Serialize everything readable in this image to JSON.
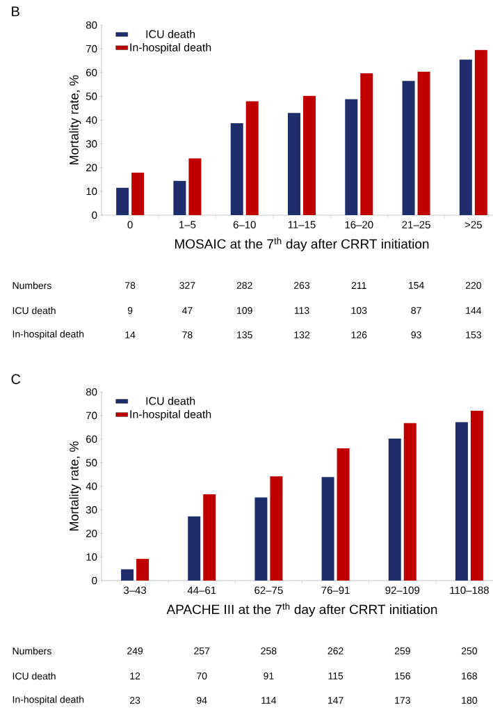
{
  "chart_data": [
    {
      "type": "bar",
      "title": "B",
      "xlabel": "MOSAIC at the 7$^{th}$ day after CRRT initiation",
      "ylabel": "Mortality rate, %",
      "categories": [
        "0",
        "1–5",
        "6–10",
        "11–15",
        "16–20",
        "21–25",
        ">25"
      ],
      "series": [
        {
          "name": "ICU death",
          "color": "#1f2d6b",
          "values": [
            11.5,
            14.4,
            38.7,
            43.0,
            48.8,
            56.5,
            65.5
          ]
        },
        {
          "name": "In-hospital death",
          "color": "#c00000",
          "values": [
            17.9,
            23.9,
            47.9,
            50.2,
            59.7,
            60.4,
            69.5
          ]
        }
      ],
      "ylim": [
        0,
        80
      ],
      "yticks": [
        0,
        10,
        20,
        30,
        40,
        50,
        60,
        70,
        80
      ],
      "grid": false,
      "legend": "top left",
      "annotations": [
        "Numbers",
        "78",
        "327",
        "282",
        "263",
        "211",
        "154",
        "220",
        "ICU death",
        "9",
        "47",
        "109",
        "113",
        "103",
        "87",
        "144",
        "In-hospital death",
        "14",
        "78",
        "135",
        "132",
        "126",
        "93",
        "153"
      ]
    },
    {
      "type": "bar",
      "title": "C",
      "xlabel": "APACHE III at the 7$^{th}$ day after CRRT initiation",
      "ylabel": "Mortality rate, %",
      "categories": [
        "3–43",
        "44–61",
        "62–75",
        "76–91",
        "92–109",
        "110–188"
      ],
      "series": [
        {
          "name": "ICU death",
          "color": "#1f2d6b",
          "values": [
            4.8,
            27.2,
            35.3,
            43.9,
            60.2,
            67.2
          ]
        },
        {
          "name": "In-hospital death",
          "color": "#c00000",
          "values": [
            9.2,
            36.6,
            44.2,
            56.1,
            66.8,
            72.0
          ]
        }
      ],
      "ylim": [
        0,
        80
      ],
      "yticks": [
        0,
        10,
        20,
        30,
        40,
        50,
        60,
        70,
        80
      ],
      "grid": false,
      "legend": "top left",
      "annotations": [
        "Numbers",
        "249",
        "257",
        "258",
        "262",
        "259",
        "250",
        "ICU death",
        "12",
        "70",
        "91",
        "115",
        "156",
        "168",
        "In-hospital death",
        "23",
        "94",
        "114",
        "147",
        "173",
        "180"
      ]
    }
  ]
}
